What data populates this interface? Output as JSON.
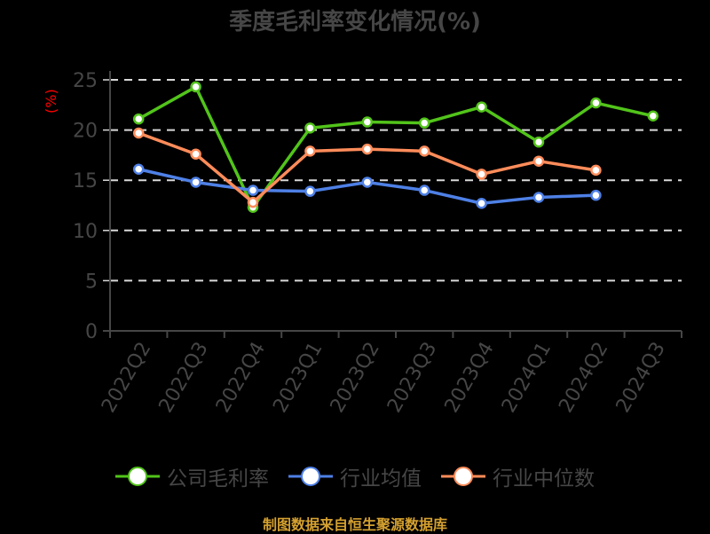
{
  "title": "季度毛利率变化情况(%)",
  "y_unit": "(%)",
  "footer": "制图数据来自恒生聚源数据库",
  "legend": [
    {
      "label": "公司毛利率",
      "color": "#52c41a"
    },
    {
      "label": "行业均值",
      "color": "#4e80e6"
    },
    {
      "label": "行业中位数",
      "color": "#ff8c5a"
    }
  ],
  "chart_data": {
    "type": "line",
    "title": "季度毛利率变化情况(%)",
    "xlabel": "",
    "ylabel": "(%)",
    "ylim": [
      0,
      25
    ],
    "yticks": [
      0,
      5,
      10,
      15,
      20,
      25
    ],
    "grid": "horizontal dashed",
    "legend_position": "bottom",
    "categories": [
      "2022Q2",
      "2022Q3",
      "2022Q4",
      "2023Q1",
      "2023Q2",
      "2023Q3",
      "2023Q4",
      "2024Q1",
      "2024Q2",
      "2024Q3"
    ],
    "series": [
      {
        "name": "公司毛利率",
        "color": "#52c41a",
        "values": [
          21.1,
          24.3,
          12.3,
          20.2,
          20.8,
          20.7,
          22.3,
          18.8,
          22.7,
          21.4
        ]
      },
      {
        "name": "行业均值",
        "color": "#4e80e6",
        "values": [
          16.1,
          14.8,
          14.0,
          13.9,
          14.8,
          14.0,
          12.7,
          13.3,
          13.5,
          null
        ]
      },
      {
        "name": "行业中位数",
        "color": "#ff8c5a",
        "values": [
          19.7,
          17.6,
          12.8,
          17.9,
          18.1,
          17.9,
          15.6,
          16.9,
          16.0,
          null
        ]
      }
    ]
  }
}
